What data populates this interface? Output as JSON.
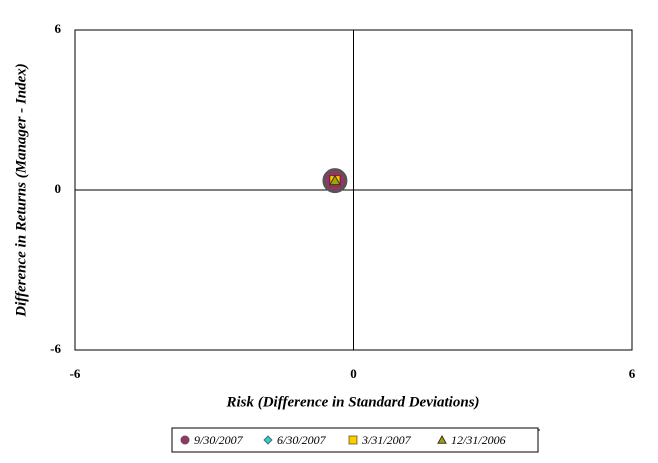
{
  "chart_data": {
    "type": "scatter",
    "x_label": "Risk (Difference in Standard Deviations)",
    "y_label": "Difference in Returns (Manager - Index)",
    "xlim": [
      -6,
      6
    ],
    "ylim": [
      -6,
      6
    ],
    "xticks": [
      -6,
      0,
      6
    ],
    "yticks": [
      -6,
      0,
      6
    ],
    "series": [
      {
        "name": "9/30/2007",
        "color": "#993366",
        "marker": "circle",
        "x": [
          -0.4
        ],
        "values": [
          0.35
        ]
      },
      {
        "name": "6/30/2007",
        "color": "#33cccc",
        "marker": "diamond",
        "x": [
          -0.4
        ],
        "values": [
          0.35
        ]
      },
      {
        "name": "3/31/2007",
        "color": "#ffcc00",
        "marker": "square",
        "x": [
          -0.4
        ],
        "values": [
          0.35
        ]
      },
      {
        "name": "12/31/2006",
        "color": "#aaa000",
        "marker": "triangle",
        "x": [
          -0.4
        ],
        "values": [
          0.35
        ]
      }
    ]
  }
}
